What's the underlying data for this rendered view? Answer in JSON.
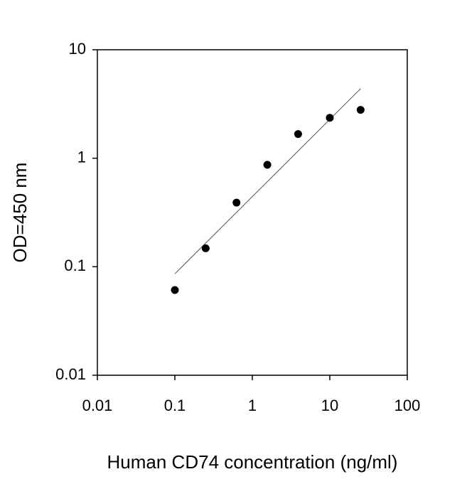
{
  "chart_data": {
    "type": "scatter",
    "xlabel": "Human CD74 concentration (ng/ml)",
    "ylabel": "OD=450 nm",
    "x": [
      0.1,
      0.25,
      0.625,
      1.5625,
      3.9,
      10,
      25
    ],
    "y": [
      0.061,
      0.148,
      0.39,
      0.87,
      1.67,
      2.36,
      2.79
    ],
    "color": "#000000",
    "fit_line": {
      "x": [
        0.1,
        25
      ],
      "y": [
        0.086,
        4.38
      ],
      "color": "#555555"
    },
    "xlim": [
      0.01,
      100
    ],
    "ylim": [
      0.01,
      10
    ],
    "xticks": [
      0.01,
      0.1,
      1,
      10,
      100
    ],
    "yticks": [
      0.01,
      0.1,
      1,
      10
    ],
    "xscale": "log",
    "yscale": "log",
    "grid": false
  }
}
